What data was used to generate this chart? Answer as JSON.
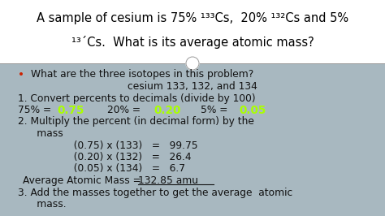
{
  "title_line1": "A sample of cesium is 75% ¹³³Cs,  20% ¹³²Cs and 5%",
  "title_line2": "¹³´Cs.  What is its average atomic mass?",
  "bg_color": "#a8b8c0",
  "title_bg": "#ffffff",
  "title_color": "#000000",
  "body_color": "#111111",
  "highlight_color": "#aaff00",
  "bullet_color": "#cc2200",
  "bullet": "•",
  "line1": "What are the three isotopes in this problem?",
  "line2": "cesium 133, 132, and 134",
  "line3": "1. Convert percents to decimals (divide by 100)",
  "line5": "2. Multiply the percent (in decimal form) by the",
  "line6": "      mass",
  "line7": "          (0.75) x (133)   =   99.75",
  "line8": "          (0.20) x (132)   =   26.4",
  "line9": "          (0.05) x (134)   =   6.7",
  "line10_a": "  Average Atomic Mass = ",
  "line10_b": "132.85 amu",
  "line11": "3. Add the masses together to get the average  atomic",
  "line12": "      mass.",
  "font_size_title": 10.5,
  "font_size_body": 8.8
}
